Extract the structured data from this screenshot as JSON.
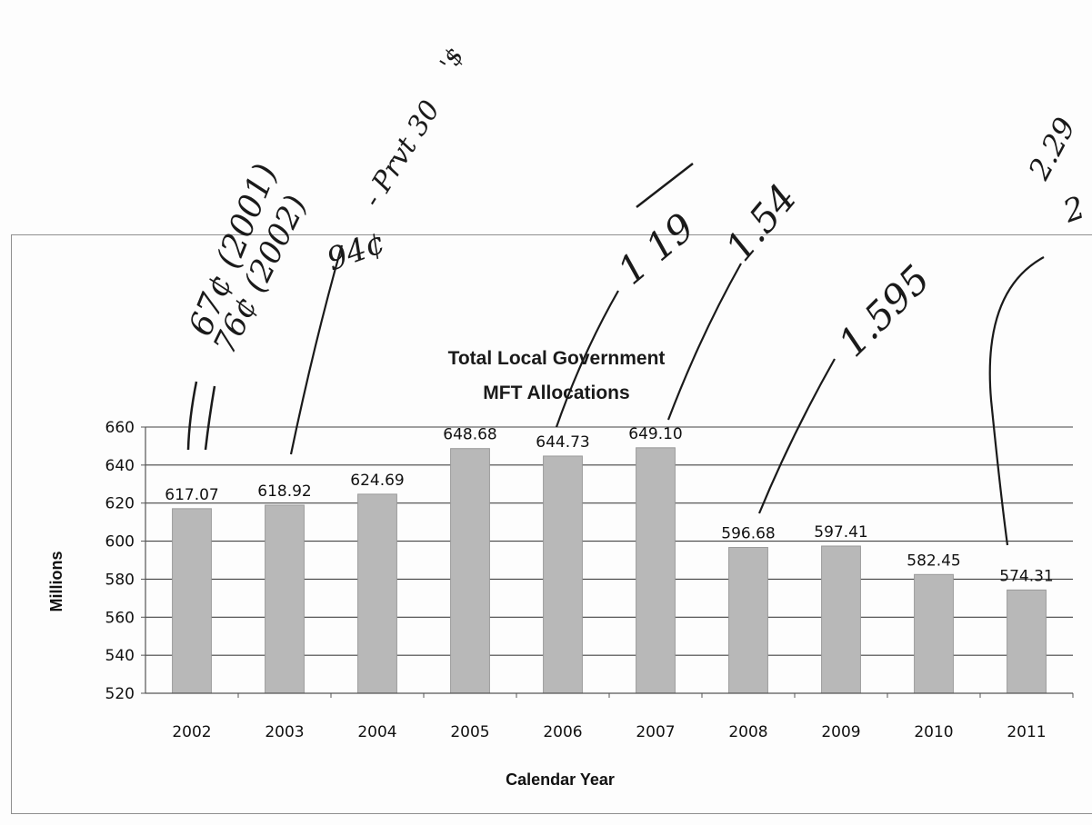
{
  "chart_data": {
    "type": "bar",
    "title": [
      "Total Local Government",
      "MFT Allocations"
    ],
    "xlabel": "Calendar Year",
    "ylabel": "Millions",
    "ylim": [
      520,
      660
    ],
    "ytick_step": 20,
    "categories": [
      "2002",
      "2003",
      "2004",
      "2005",
      "2006",
      "2007",
      "2008",
      "2009",
      "2010",
      "2011"
    ],
    "values": [
      617.07,
      618.92,
      624.69,
      648.68,
      644.73,
      649.1,
      596.68,
      597.41,
      582.45,
      574.31
    ],
    "data_labels": [
      "617.07",
      "618.92",
      "624.69",
      "648.68",
      "644.73",
      "649.10",
      "596.68",
      "597.41",
      "582.45",
      "574.31"
    ],
    "grid": true,
    "bar_color": "#b8b8b8",
    "legend": "none"
  },
  "annotations": {
    "note_2002_a": "67¢ (2001)",
    "note_2002_b": "76¢ (2002)",
    "note_2002_c": "- Prvt 30",
    "note_2002_d": "'$",
    "note_2003": "94¢",
    "note_2006": "1 19",
    "note_2007": "1.54",
    "note_2008": "1.595",
    "note_2011_a": "2.29",
    "note_2011_b": "2"
  }
}
